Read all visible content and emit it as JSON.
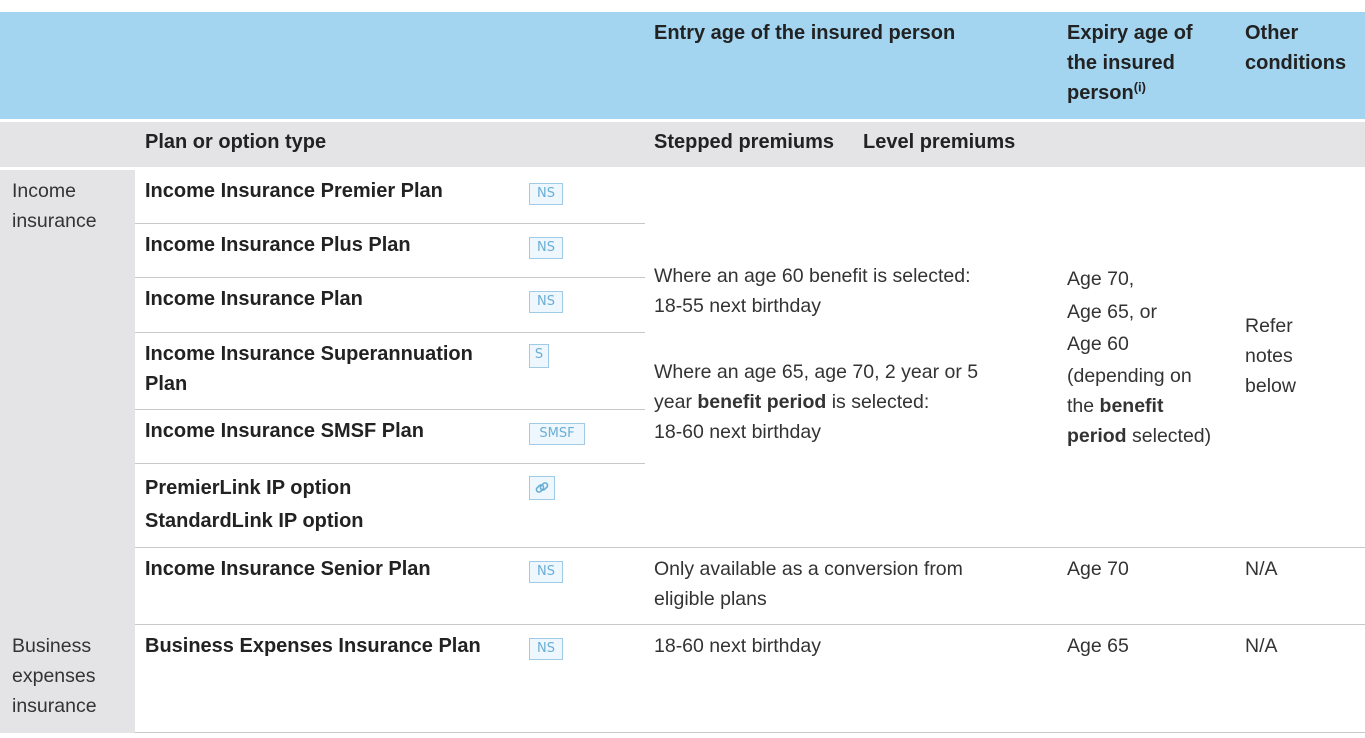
{
  "header": {
    "entry_age": "Entry age of the insured person",
    "expiry_age_line1": "Expiry age of",
    "expiry_age_line2": "the insured",
    "expiry_age_line3": "person",
    "expiry_sup": "(i)",
    "other_line1": "Other",
    "other_line2": "conditions"
  },
  "subheader": {
    "plan_type": "Plan or option type",
    "stepped": "Stepped premiums",
    "level": "Level premiums"
  },
  "categories": {
    "income_line1": "Income",
    "income_line2": "insurance",
    "business_line1": "Business",
    "business_line2": "expenses",
    "business_line3": "insurance"
  },
  "plans": [
    {
      "name": "Income Insurance Premier Plan",
      "badge": "NS"
    },
    {
      "name": "Income Insurance Plus Plan",
      "badge": "NS"
    },
    {
      "name": "Income Insurance Plan",
      "badge": "NS"
    },
    {
      "name_line1": "Income Insurance Superannuation",
      "name_line2": "Plan",
      "badge": "S"
    },
    {
      "name": "Income Insurance SMSF Plan",
      "badge": "SMSF"
    },
    {
      "name_line1": "PremierLink IP option",
      "name_line2": "StandardLink IP option",
      "badge_icon": "link-icon"
    },
    {
      "name": "Income Insurance Senior Plan",
      "badge": "NS"
    },
    {
      "name": "Business Expenses Insurance Plan",
      "badge": "NS"
    }
  ],
  "income_group": {
    "entry_p1_line1": "Where an age 60 benefit is selected:",
    "entry_p1_line2": "18-55 next birthday",
    "entry_p2_line1": "Where an age 65, age 70, 2 year or 5",
    "entry_p2_line2a": "year ",
    "entry_p2_line2b": "benefit period",
    "entry_p2_line2c": " is selected:",
    "entry_p2_line3": "18-60 next birthday",
    "expiry_line1": "Age 70,",
    "expiry_line2": "Age 65, or",
    "expiry_line3": "Age 60",
    "expiry_line4": "(depending on",
    "expiry_line5a": "the ",
    "expiry_line5b": "benefit",
    "expiry_line6a": "period",
    "expiry_line6b": " selected)",
    "other_line1": "Refer",
    "other_line2": "notes",
    "other_line3": "below"
  },
  "senior_row": {
    "entry_line1": "Only available as a conversion from",
    "entry_line2": "eligible plans",
    "expiry": "Age 70",
    "other": "N/A"
  },
  "business_row": {
    "entry": "18-60 next birthday",
    "expiry": "Age 65",
    "other": "N/A"
  }
}
